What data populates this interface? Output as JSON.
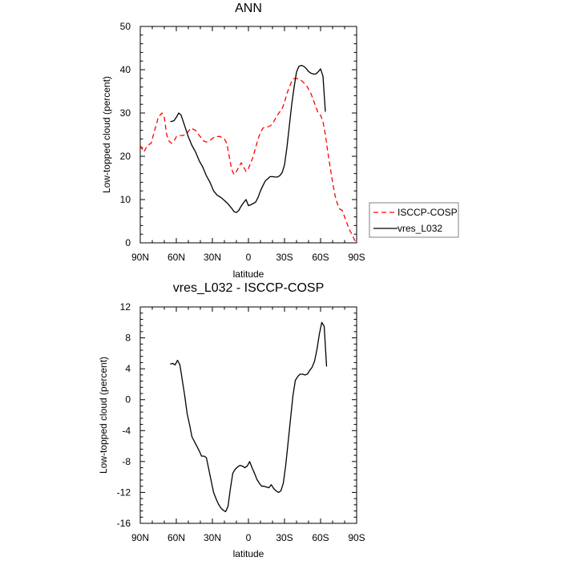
{
  "chart_data": [
    {
      "type": "line",
      "title": "ANN",
      "xlabel": "latitude",
      "ylabel": "Low-topped cloud (percent)",
      "xlim": [
        -90,
        90
      ],
      "ylim": [
        0,
        50
      ],
      "x_ticks": [
        -90,
        -60,
        -30,
        0,
        30,
        60,
        90
      ],
      "x_tick_labels": [
        "90N",
        "60N",
        "30N",
        "0",
        "30S",
        "60S",
        "90S"
      ],
      "y_ticks": [
        0,
        10,
        20,
        30,
        40,
        50
      ],
      "y_tick_labels": [
        "0",
        "10",
        "20",
        "30",
        "40",
        "50"
      ],
      "legend": {
        "placement": "right",
        "entries": [
          "ISCCP-COSP",
          "vres_L032"
        ]
      },
      "series": [
        {
          "name": "ISCCP-COSP",
          "color": "#ff0000",
          "dash": "dashed",
          "x": [
            -90,
            -87,
            -84,
            -81,
            -78,
            -75,
            -72,
            -70,
            -68,
            -66,
            -64,
            -62,
            -60,
            -58,
            -55,
            -52,
            -48,
            -44,
            -40,
            -37,
            -35,
            -32,
            -28,
            -24,
            -20,
            -18,
            -16,
            -14,
            -12,
            -10,
            -8,
            -6,
            -4,
            -2,
            0,
            2,
            4,
            6,
            8,
            10,
            12,
            14,
            16,
            18,
            20,
            24,
            28,
            30,
            32,
            34,
            36,
            38,
            40,
            42,
            44,
            46,
            48,
            50,
            52,
            54,
            56,
            58,
            60,
            62,
            64,
            66,
            68,
            70,
            72,
            74,
            76,
            78,
            80,
            82,
            84,
            86,
            88,
            90
          ],
          "y": [
            22.5,
            21,
            22.5,
            23,
            26,
            29,
            30,
            29,
            25,
            23.5,
            23,
            23.5,
            24.5,
            24.8,
            24.8,
            25,
            26.5,
            26,
            24.5,
            23.5,
            23.3,
            23.7,
            24.5,
            24.6,
            24,
            23,
            20,
            17,
            15.8,
            16.5,
            17.5,
            18.5,
            17.5,
            16.5,
            17.2,
            18.5,
            20,
            22,
            24,
            25.5,
            26.5,
            26.7,
            26.8,
            27,
            27.5,
            29.5,
            31,
            32.5,
            34.5,
            36,
            37.3,
            38,
            38,
            37.8,
            37.5,
            37,
            36.5,
            35.5,
            34.5,
            33,
            31.5,
            30,
            29.5,
            28,
            25,
            21,
            17.5,
            14,
            11,
            9,
            7.8,
            7.5,
            6,
            4.5,
            3,
            2,
            0.8,
            0
          ]
        },
        {
          "name": "vres_L032",
          "color": "#000000",
          "dash": "solid",
          "x": [
            -65,
            -62,
            -60,
            -58,
            -56,
            -53,
            -50,
            -47,
            -44,
            -41,
            -38,
            -35,
            -32,
            -29,
            -26,
            -23,
            -20,
            -17,
            -14,
            -12,
            -10,
            -8,
            -6,
            -4,
            -2,
            0,
            2,
            4,
            6,
            8,
            10,
            12,
            14,
            16,
            18,
            20,
            22,
            24,
            26,
            28,
            30,
            32,
            34,
            36,
            38,
            40,
            42,
            44,
            46,
            48,
            50,
            52,
            54,
            56,
            58,
            60,
            62,
            64
          ],
          "y": [
            28,
            28.2,
            29,
            30,
            29.5,
            27,
            24.5,
            22.5,
            21,
            19,
            17.5,
            15.5,
            14,
            12,
            11,
            10.5,
            9.8,
            9,
            8,
            7.2,
            7,
            7.5,
            8.5,
            9.3,
            10,
            8.6,
            8.8,
            9.1,
            9.4,
            10.5,
            12,
            13.2,
            14.3,
            14.8,
            15.3,
            15.3,
            15.2,
            15.2,
            15.5,
            16.2,
            18,
            22,
            27,
            32,
            36,
            39.5,
            40.8,
            41,
            40.8,
            40.3,
            39.6,
            39.2,
            39,
            39,
            39.5,
            40.2,
            38.5,
            30.3
          ]
        }
      ]
    },
    {
      "type": "line",
      "title": "vres_L032 - ISCCP-COSP",
      "xlabel": "latitude",
      "ylabel": "Low-topped cloud (percent)",
      "xlim": [
        -90,
        90
      ],
      "ylim": [
        -16,
        12
      ],
      "x_ticks": [
        -90,
        -60,
        -30,
        0,
        30,
        60,
        90
      ],
      "x_tick_labels": [
        "90N",
        "60N",
        "30N",
        "0",
        "30S",
        "60S",
        "90S"
      ],
      "y_ticks": [
        -16,
        -12,
        -8,
        -4,
        0,
        4,
        8,
        12
      ],
      "y_tick_labels": [
        "-16",
        "-12",
        "-8",
        "-4",
        "0",
        "4",
        "8",
        "12"
      ],
      "series": [
        {
          "name": "vres_L032 - ISCCP-COSP",
          "color": "#000000",
          "dash": "solid",
          "x": [
            -65,
            -63,
            -61,
            -59,
            -57,
            -55,
            -53,
            -51,
            -49,
            -47,
            -45,
            -43,
            -41,
            -39,
            -37,
            -35,
            -33,
            -31,
            -29,
            -27,
            -25,
            -23,
            -21,
            -19,
            -17,
            -15,
            -13,
            -11,
            -9,
            -7,
            -5,
            -3,
            -1,
            1,
            3,
            5,
            7,
            9,
            11,
            13,
            15,
            17,
            19,
            21,
            23,
            25,
            27,
            29,
            31,
            33,
            35,
            37,
            39,
            41,
            43,
            45,
            47,
            49,
            51,
            53,
            55,
            57,
            59,
            61,
            63,
            65
          ],
          "y": [
            4.6,
            4.7,
            4.5,
            5.1,
            4.5,
            2.5,
            0.5,
            -1.8,
            -3.2,
            -4.8,
            -5.4,
            -6,
            -6.6,
            -7.3,
            -7.3,
            -7.5,
            -9,
            -10.5,
            -12,
            -12.8,
            -13.5,
            -14,
            -14.3,
            -14.5,
            -13.8,
            -11.5,
            -9.5,
            -9,
            -8.7,
            -8.5,
            -8.6,
            -8.8,
            -8.6,
            -8,
            -8.8,
            -9.5,
            -10.3,
            -10.8,
            -11.2,
            -11.2,
            -11.3,
            -11.4,
            -11,
            -11.5,
            -11.8,
            -12,
            -11.8,
            -10.8,
            -8.5,
            -5.5,
            -2.5,
            0.5,
            2.5,
            3,
            3.3,
            3.3,
            3.2,
            3.3,
            3.8,
            4.2,
            5,
            6.5,
            8.5,
            10,
            9.5,
            4.3
          ]
        }
      ]
    }
  ]
}
